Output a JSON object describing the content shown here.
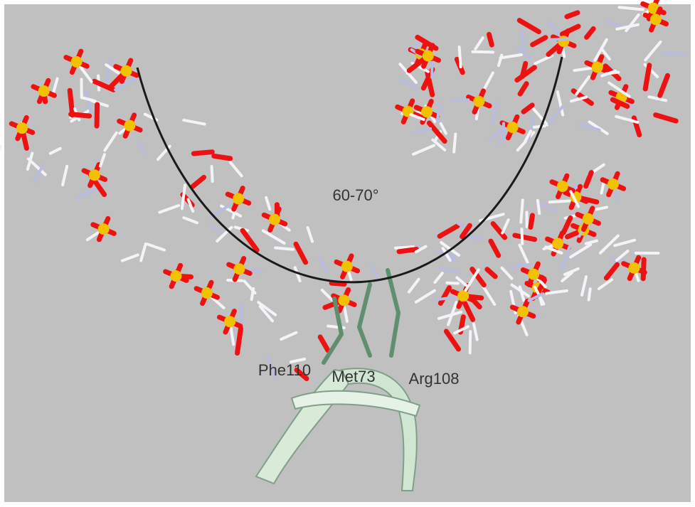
{
  "annotations": {
    "angle": "60-70°",
    "residues": [
      "Phe110",
      "Met73",
      "Arg108"
    ]
  }
}
